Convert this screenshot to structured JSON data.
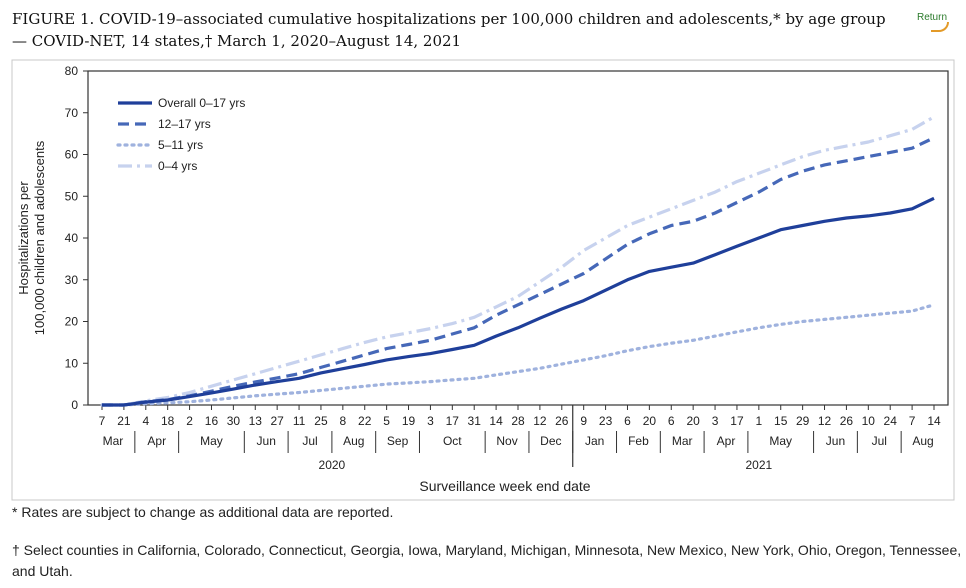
{
  "title": "FIGURE 1. COVID-19–associated cumulative hospitalizations per 100,000 children and adolescents,* by age group — COVID-NET, 14 states,† March 1, 2020–August 14, 2021",
  "return_label": "Return",
  "footnotes": [
    "* Rates are subject to change as additional data are reported.",
    "† Select counties in California, Colorado, Connecticut, Georgia, Iowa, Maryland, Michigan, Minnesota, New Mexico, New York, Ohio, Oregon, Tennessee, and Utah."
  ],
  "colors": {
    "overall": "#1f3f9a",
    "age_12_17": "#4668b8",
    "age_5_11": "#9fb2de",
    "age_0_4": "#c7d2ee",
    "axis": "#333333"
  },
  "chart_data": {
    "type": "line",
    "xlabel": "Surveillance week end date",
    "ylabel": "Hospitalizations per 100,000 children and adolescents",
    "ylim": [
      0,
      80
    ],
    "yticks": [
      0,
      10,
      20,
      30,
      40,
      50,
      60,
      70,
      80
    ],
    "legend_position": "top-left",
    "grid": false,
    "x_tick_labels": [
      "7",
      "21",
      "4",
      "18",
      "2",
      "16",
      "30",
      "13",
      "27",
      "11",
      "25",
      "8",
      "22",
      "5",
      "19",
      "3",
      "17",
      "31",
      "14",
      "28",
      "12",
      "26",
      "9",
      "23",
      "6",
      "20",
      "6",
      "20",
      "3",
      "17",
      "1",
      "15",
      "29",
      "12",
      "26",
      "10",
      "24",
      "7",
      "14"
    ],
    "months": [
      {
        "label": "Mar",
        "first_tick": 0,
        "last_tick": 1
      },
      {
        "label": "Apr",
        "first_tick": 2,
        "last_tick": 3
      },
      {
        "label": "May",
        "first_tick": 4,
        "last_tick": 6
      },
      {
        "label": "Jun",
        "first_tick": 7,
        "last_tick": 8
      },
      {
        "label": "Jul",
        "first_tick": 9,
        "last_tick": 10
      },
      {
        "label": "Aug",
        "first_tick": 11,
        "last_tick": 12
      },
      {
        "label": "Sep",
        "first_tick": 13,
        "last_tick": 14
      },
      {
        "label": "Oct",
        "first_tick": 15,
        "last_tick": 17
      },
      {
        "label": "Nov",
        "first_tick": 18,
        "last_tick": 19
      },
      {
        "label": "Dec",
        "first_tick": 20,
        "last_tick": 21
      },
      {
        "label": "Jan",
        "first_tick": 22,
        "last_tick": 23
      },
      {
        "label": "Feb",
        "first_tick": 24,
        "last_tick": 25
      },
      {
        "label": "Mar",
        "first_tick": 26,
        "last_tick": 27
      },
      {
        "label": "Apr",
        "first_tick": 28,
        "last_tick": 29
      },
      {
        "label": "May",
        "first_tick": 30,
        "last_tick": 32
      },
      {
        "label": "Jun",
        "first_tick": 33,
        "last_tick": 34
      },
      {
        "label": "Jul",
        "first_tick": 35,
        "last_tick": 36
      },
      {
        "label": "Aug",
        "first_tick": 37,
        "last_tick": 38
      }
    ],
    "years": [
      {
        "label": "2020",
        "first_tick": 0,
        "last_tick": 21
      },
      {
        "label": "2021",
        "first_tick": 22,
        "last_tick": 38
      }
    ],
    "series": [
      {
        "name": "Overall 0–17 yrs",
        "style": "solid",
        "values": [
          0,
          0,
          0.7,
          1.2,
          2.0,
          2.9,
          3.8,
          4.8,
          5.6,
          6.4,
          7.7,
          8.7,
          9.7,
          10.8,
          11.6,
          12.3,
          13.3,
          14.3,
          16.5,
          18.5,
          20.8,
          23.0,
          25.0,
          27.5,
          30.0,
          32.0,
          33.0,
          34.0,
          36.0,
          38.0,
          40.0,
          42.0,
          43.0,
          44.0,
          44.8,
          45.3,
          46.0,
          47.0,
          49.5
        ]
      },
      {
        "name": "12–17 yrs",
        "style": "dashed",
        "values": [
          0,
          0,
          0.8,
          1.3,
          2.2,
          3.3,
          4.5,
          5.5,
          6.5,
          7.5,
          9.0,
          10.5,
          12.0,
          13.5,
          14.5,
          15.5,
          17.0,
          18.5,
          21.5,
          24.0,
          26.5,
          29.0,
          31.5,
          35.0,
          38.5,
          41.0,
          43.0,
          44.0,
          46.0,
          48.5,
          51.0,
          54.0,
          56.0,
          57.5,
          58.5,
          59.5,
          60.5,
          61.5,
          64.0
        ]
      },
      {
        "name": "5–11 yrs",
        "style": "dotted",
        "values": [
          0,
          0,
          0.3,
          0.5,
          0.8,
          1.2,
          1.7,
          2.2,
          2.6,
          3.0,
          3.5,
          4.0,
          4.5,
          5.0,
          5.3,
          5.6,
          6.0,
          6.4,
          7.2,
          8.0,
          8.8,
          9.8,
          10.8,
          11.8,
          13.0,
          14.0,
          14.8,
          15.5,
          16.5,
          17.5,
          18.5,
          19.3,
          20.0,
          20.5,
          21.0,
          21.5,
          22.0,
          22.5,
          24.0
        ]
      },
      {
        "name": "0–4 yrs",
        "style": "dashdot",
        "values": [
          0,
          0,
          1.0,
          1.8,
          3.0,
          4.5,
          6.0,
          7.5,
          9.0,
          10.5,
          12.0,
          13.5,
          15.0,
          16.3,
          17.3,
          18.3,
          19.5,
          21.0,
          23.5,
          26.0,
          29.5,
          33.0,
          37.0,
          40.0,
          43.0,
          45.0,
          47.0,
          49.0,
          51.0,
          53.5,
          55.5,
          57.5,
          59.5,
          61.0,
          62.0,
          63.0,
          64.5,
          66.0,
          69.0
        ]
      }
    ]
  }
}
